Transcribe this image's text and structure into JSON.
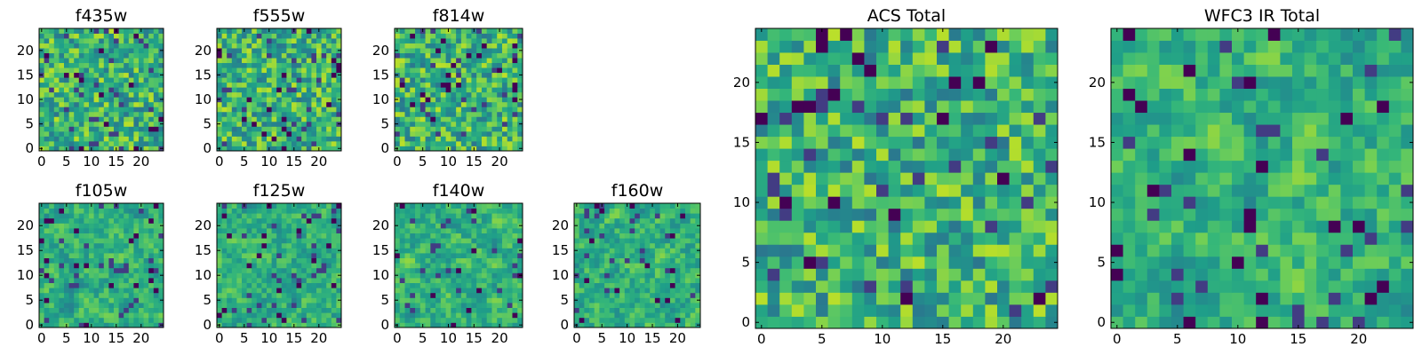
{
  "chart_data": [
    {
      "type": "heatmap",
      "title": "f435w",
      "grid_size": 25,
      "xlim": [
        0,
        25
      ],
      "ylim": [
        0,
        25
      ],
      "xticks": [
        0,
        5,
        10,
        15,
        20
      ],
      "yticks": [
        0,
        5,
        10,
        15,
        20
      ],
      "colormap": "viridis",
      "seed": 11
    },
    {
      "type": "heatmap",
      "title": "f555w",
      "grid_size": 25,
      "xlim": [
        0,
        25
      ],
      "ylim": [
        0,
        25
      ],
      "xticks": [
        0,
        5,
        10,
        15,
        20
      ],
      "yticks": [
        0,
        5,
        10,
        15,
        20
      ],
      "colormap": "viridis",
      "seed": 23
    },
    {
      "type": "heatmap",
      "title": "f814w",
      "grid_size": 25,
      "xlim": [
        0,
        25
      ],
      "ylim": [
        0,
        25
      ],
      "xticks": [
        0,
        5,
        10,
        15,
        20
      ],
      "yticks": [
        0,
        5,
        10,
        15,
        20
      ],
      "colormap": "viridis",
      "seed": 37
    },
    {
      "type": "heatmap",
      "title": "f105w",
      "grid_size": 25,
      "xlim": [
        0,
        25
      ],
      "ylim": [
        0,
        25
      ],
      "xticks": [
        0,
        5,
        10,
        15,
        20
      ],
      "yticks": [
        0,
        5,
        10,
        15,
        20
      ],
      "colormap": "viridis",
      "seed": 41
    },
    {
      "type": "heatmap",
      "title": "f125w",
      "grid_size": 25,
      "xlim": [
        0,
        25
      ],
      "ylim": [
        0,
        25
      ],
      "xticks": [
        0,
        5,
        10,
        15,
        20
      ],
      "yticks": [
        0,
        5,
        10,
        15,
        20
      ],
      "colormap": "viridis",
      "seed": 53
    },
    {
      "type": "heatmap",
      "title": "f140w",
      "grid_size": 25,
      "xlim": [
        0,
        25
      ],
      "ylim": [
        0,
        25
      ],
      "xticks": [
        0,
        5,
        10,
        15,
        20
      ],
      "yticks": [
        0,
        5,
        10,
        15,
        20
      ],
      "colormap": "viridis",
      "seed": 67
    },
    {
      "type": "heatmap",
      "title": "f160w",
      "grid_size": 25,
      "xlim": [
        0,
        25
      ],
      "ylim": [
        0,
        25
      ],
      "xticks": [
        0,
        5,
        10,
        15,
        20
      ],
      "yticks": [
        0,
        5,
        10,
        15,
        20
      ],
      "colormap": "viridis",
      "seed": 71
    },
    {
      "type": "heatmap",
      "title": "ACS Total",
      "grid_size": 25,
      "xlim": [
        0,
        25
      ],
      "ylim": [
        0,
        25
      ],
      "xticks": [
        0,
        5,
        10,
        15,
        20
      ],
      "yticks": [
        0,
        5,
        10,
        15,
        20
      ],
      "colormap": "viridis",
      "seed": 83
    },
    {
      "type": "heatmap",
      "title": "WFC3 IR Total",
      "grid_size": 25,
      "xlim": [
        0,
        25
      ],
      "ylim": [
        0,
        25
      ],
      "xticks": [
        0,
        5,
        10,
        15,
        20
      ],
      "yticks": [
        0,
        5,
        10,
        15,
        20
      ],
      "colormap": "viridis",
      "seed": 97
    }
  ]
}
